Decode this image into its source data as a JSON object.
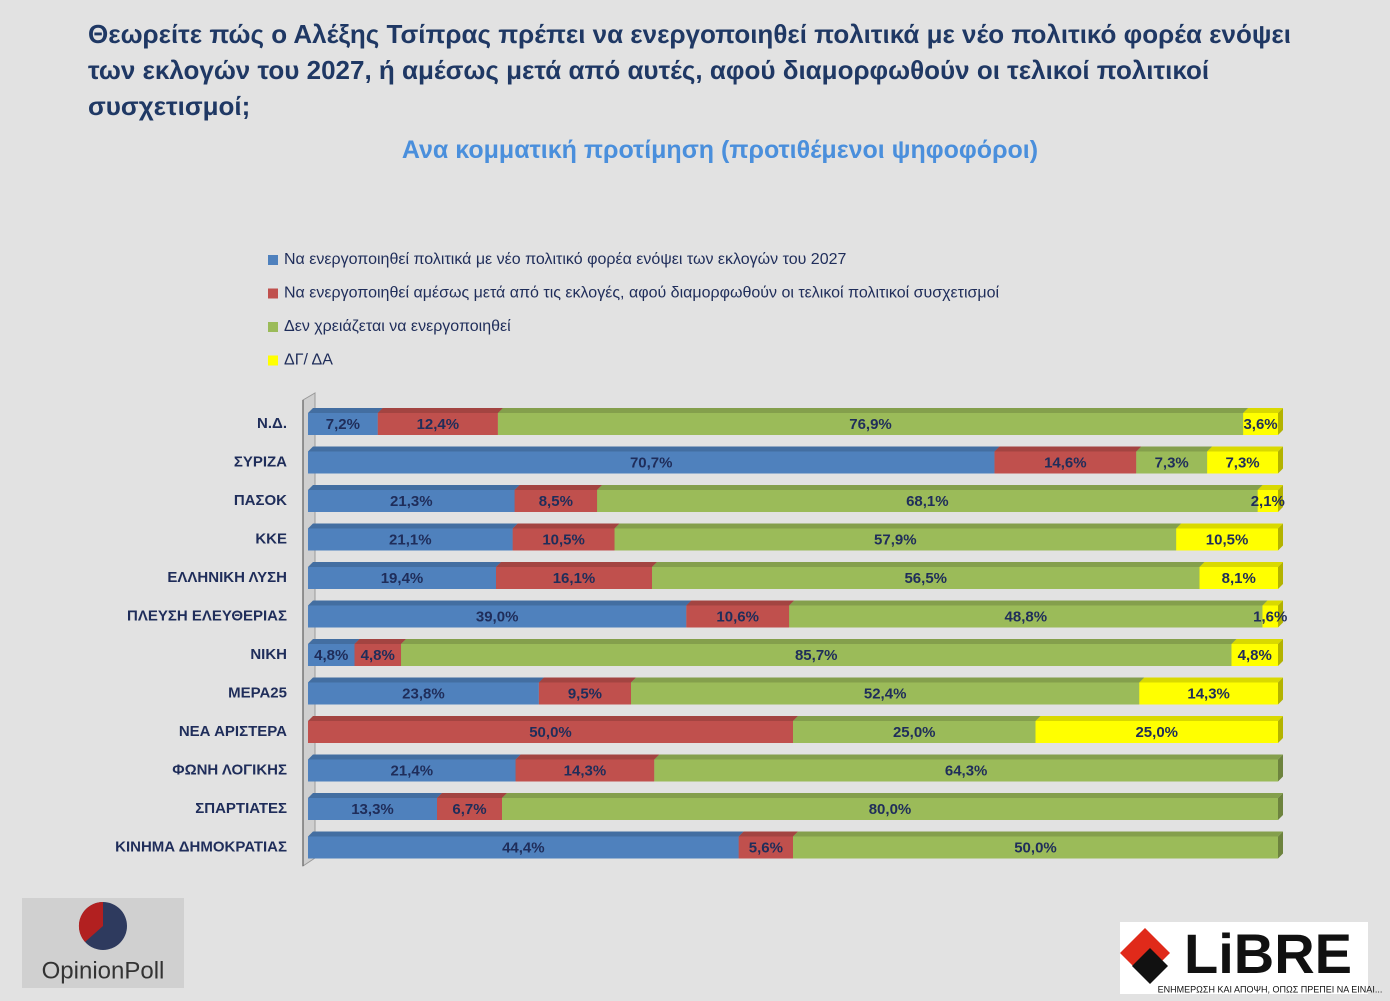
{
  "chart_data": {
    "type": "stacked-bar-horizontal",
    "title": "Θεωρείτε πώς ο Αλέξης Τσίπρας πρέπει να ενεργοποιηθεί πολιτικά με νέο πολιτικό φορέα ενόψει των εκλογών του 2027, ή αμέσως μετά από αυτές, αφού διαμορφωθούν οι τελικοί πολιτικοί συσχετισμοί;",
    "subtitle": "Ανα κομματική προτίμηση (προτιθέμενοι ψηφοφόροι)",
    "categories": [
      "Ν.Δ.",
      "ΣΥΡΙΖΑ",
      "ΠΑΣΟΚ",
      "ΚΚΕ",
      "ΕΛΛΗΝΙΚΗ ΛΥΣΗ",
      "ΠΛΕΥΣΗ ΕΛΕΥΘΕΡΙΑΣ",
      "ΝΙΚΗ",
      "ΜΕΡΑ25",
      "ΝΕΑ ΑΡΙΣΤΕΡΑ",
      "ΦΩΝΗ ΛΟΓΙΚΗΣ",
      "ΣΠΑΡΤΙΑΤΕΣ",
      "ΚΙΝΗΜΑ ΔΗΜΟΚΡΑΤΙΑΣ"
    ],
    "series": [
      {
        "name": "Να ενεργοποιηθεί πολιτικά με νέο πολιτικό φορέα ενόψει των εκλογών του 2027",
        "color": "#4f81bd",
        "values": [
          7.2,
          70.7,
          21.3,
          21.1,
          19.4,
          39.0,
          4.8,
          23.8,
          null,
          21.4,
          13.3,
          44.4
        ],
        "value_labels": [
          "7,2%",
          "70,7%",
          "21,3%",
          "21,1%",
          "19,4%",
          "39,0%",
          "4,8%",
          "23,8%",
          null,
          "21,4%",
          "13,3%",
          "44,4%"
        ]
      },
      {
        "name": "Να ενεργοποιηθεί αμέσως μετά από τις εκλογές, αφού διαμορφωθούν οι τελικοί πολιτικοί συσχετισμοί",
        "color": "#c0504d",
        "values": [
          12.4,
          14.6,
          8.5,
          10.5,
          16.1,
          10.6,
          4.8,
          9.5,
          50.0,
          14.3,
          6.7,
          5.6
        ],
        "value_labels": [
          "12,4%",
          "14,6%",
          "8,5%",
          "10,5%",
          "16,1%",
          "10,6%",
          "4,8%",
          "9,5%",
          "50,0%",
          "14,3%",
          "6,7%",
          "5,6%"
        ]
      },
      {
        "name": "Δεν χρειάζεται να ενεργοποιηθεί",
        "color": "#9bbb59",
        "values": [
          76.9,
          7.3,
          68.1,
          57.9,
          56.5,
          48.8,
          85.7,
          52.4,
          25.0,
          64.3,
          80.0,
          50.0
        ],
        "value_labels": [
          "76,9%",
          "7,3%",
          "68,1%",
          "57,9%",
          "56,5%",
          "48,8%",
          "85,7%",
          "52,4%",
          "25,0%",
          "64,3%",
          "80,0%",
          "50,0%"
        ]
      },
      {
        "name": "ΔΓ/ ΔΑ",
        "color": "#ffff00",
        "values": [
          3.6,
          7.3,
          2.1,
          10.5,
          8.1,
          1.6,
          4.8,
          14.3,
          25.0,
          null,
          null,
          null
        ],
        "value_labels": [
          "3,6%",
          "7,3%",
          "2,1%",
          "10,5%",
          "8,1%",
          "1,6%",
          "4,8%",
          "14,3%",
          "25,0%",
          null,
          null,
          null
        ]
      }
    ]
  },
  "logos": {
    "left": "OpinionPoll",
    "right": "LiBRE",
    "right_tagline": "ΕΝΗΜΕΡΩΣΗ ΚΑΙ ΑΠΟΨΗ, ΟΠΩΣ ΠΡΕΠΕΙ ΝΑ ΕΙΝΑΙ..."
  }
}
